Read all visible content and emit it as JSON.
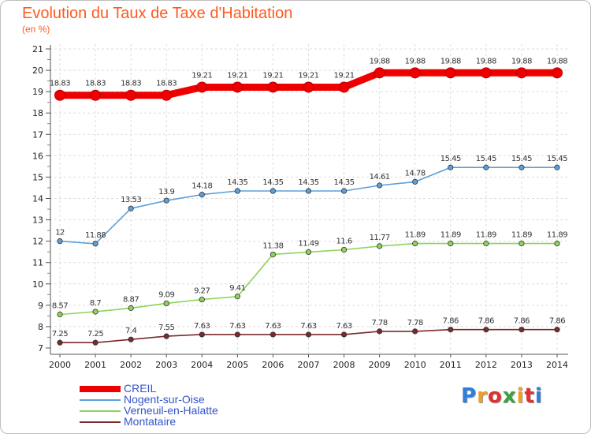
{
  "title": "Evolution du Taux de Taxe d'Habitation",
  "subtitle": "(en %)",
  "logo": {
    "letters": [
      "P",
      "r",
      "o",
      "x",
      "i",
      "t",
      "i"
    ],
    "colors": [
      "#2d7fd9",
      "#f0a020",
      "#e03030",
      "#3aa040",
      "#f0a020",
      "#e03030",
      "#2d7fd9"
    ]
  },
  "chart_data": {
    "type": "line",
    "title": "Evolution du Taux de Taxe d'Habitation",
    "ylabel": "(en %)",
    "xlabel": "",
    "ylim": [
      7,
      21
    ],
    "yticks": [
      "7",
      "8",
      "9",
      "10",
      "11",
      "12",
      "13",
      "14",
      "15",
      "16",
      "17",
      "18",
      "19",
      "20",
      "21"
    ],
    "categories": [
      "2000",
      "2001",
      "2002",
      "2003",
      "2004",
      "2005",
      "2006",
      "2007",
      "2008",
      "2009",
      "2010",
      "2011",
      "2012",
      "2013",
      "2014"
    ],
    "legend_position": "bottom-left",
    "series": [
      {
        "name": "CREIL",
        "color": "#ee0000",
        "values": [
          18.83,
          18.83,
          18.83,
          18.83,
          19.21,
          19.21,
          19.21,
          19.21,
          19.21,
          19.88,
          19.88,
          19.88,
          19.88,
          19.88,
          19.88
        ],
        "labels": [
          "18.83",
          "18.83",
          "18.83",
          "18.83",
          "19.21",
          "19.21",
          "19.21",
          "19.21",
          "19.21",
          "19.88",
          "19.88",
          "19.88",
          "19.88",
          "19.88",
          "19.88"
        ]
      },
      {
        "name": "Nogent-sur-Oise",
        "color": "#5d9fd8",
        "values": [
          12,
          11.88,
          13.53,
          13.9,
          14.18,
          14.35,
          14.35,
          14.35,
          14.35,
          14.61,
          14.78,
          15.45,
          15.45,
          15.45,
          15.45
        ],
        "labels": [
          "12",
          "11.88",
          "13.53",
          "13.9",
          "14.18",
          "14.35",
          "14.35",
          "14.35",
          "14.35",
          "14.61",
          "14.78",
          "15.45",
          "15.45",
          "15.45",
          "15.45"
        ]
      },
      {
        "name": "Verneuil-en-Halatte",
        "color": "#8dd35a",
        "values": [
          8.57,
          8.7,
          8.87,
          9.09,
          9.27,
          9.41,
          11.38,
          11.49,
          11.6,
          11.77,
          11.89,
          11.89,
          11.89,
          11.89,
          11.89
        ],
        "labels": [
          "8.57",
          "8.7",
          "8.87",
          "9.09",
          "9.27",
          "9.41",
          "11.38",
          "11.49",
          "11.6",
          "11.77",
          "11.89",
          "11.89",
          "11.89",
          "11.89",
          "11.89"
        ]
      },
      {
        "name": "Montataire",
        "color": "#7a2a2a",
        "values": [
          7.25,
          7.25,
          7.4,
          7.55,
          7.63,
          7.63,
          7.63,
          7.63,
          7.63,
          7.78,
          7.78,
          7.86,
          7.86,
          7.86,
          7.86
        ],
        "labels": [
          "7.25",
          "7.25",
          "7.4",
          "7.55",
          "7.63",
          "7.63",
          "7.63",
          "7.63",
          "7.63",
          "7.78",
          "7.78",
          "7.86",
          "7.86",
          "7.86",
          "7.86"
        ]
      }
    ]
  }
}
